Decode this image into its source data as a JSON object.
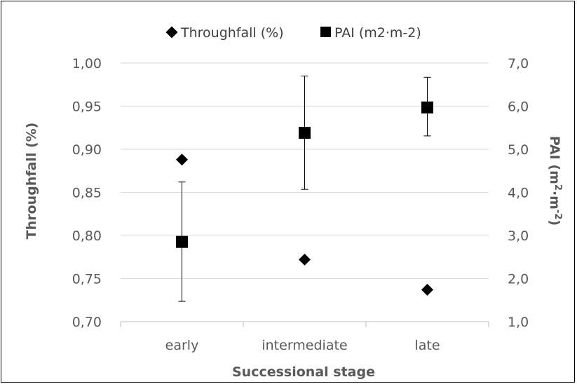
{
  "chart_data": {
    "type": "scatter",
    "categories": [
      "early",
      "intermediate",
      "late"
    ],
    "xlabel": "Successional stage",
    "ylabel": "Throughfall (%)",
    "y2label": "PAI (m2·m-2)",
    "y2label_main": "PAI (m",
    "y2label_sup1": "2",
    "y2label_mid": "·m",
    "y2label_sup2": "-2",
    "y2label_end": ")",
    "ylim": [
      0.7,
      1.0
    ],
    "y_ticks": [
      "0,70",
      "0,75",
      "0,80",
      "0,85",
      "0,90",
      "0,95",
      "1,00"
    ],
    "y2lim": [
      1.0,
      7.0
    ],
    "y2_ticks": [
      "1,0",
      "2,0",
      "3,0",
      "4,0",
      "5,0",
      "6,0",
      "7,0"
    ],
    "grid": true,
    "legend_position": "top",
    "series": [
      {
        "name": "Throughfall (%)",
        "axis": "left",
        "marker": "diamond",
        "color": "#000000",
        "values": [
          0.888,
          0.772,
          0.737
        ]
      },
      {
        "name": "PAI (m2·m-2)",
        "axis": "right",
        "marker": "square",
        "color": "#000000",
        "values": [
          2.85,
          5.38,
          5.97
        ],
        "error_low": [
          1.47,
          4.07,
          5.31
        ],
        "error_high": [
          4.24,
          6.7,
          6.67
        ]
      }
    ]
  }
}
